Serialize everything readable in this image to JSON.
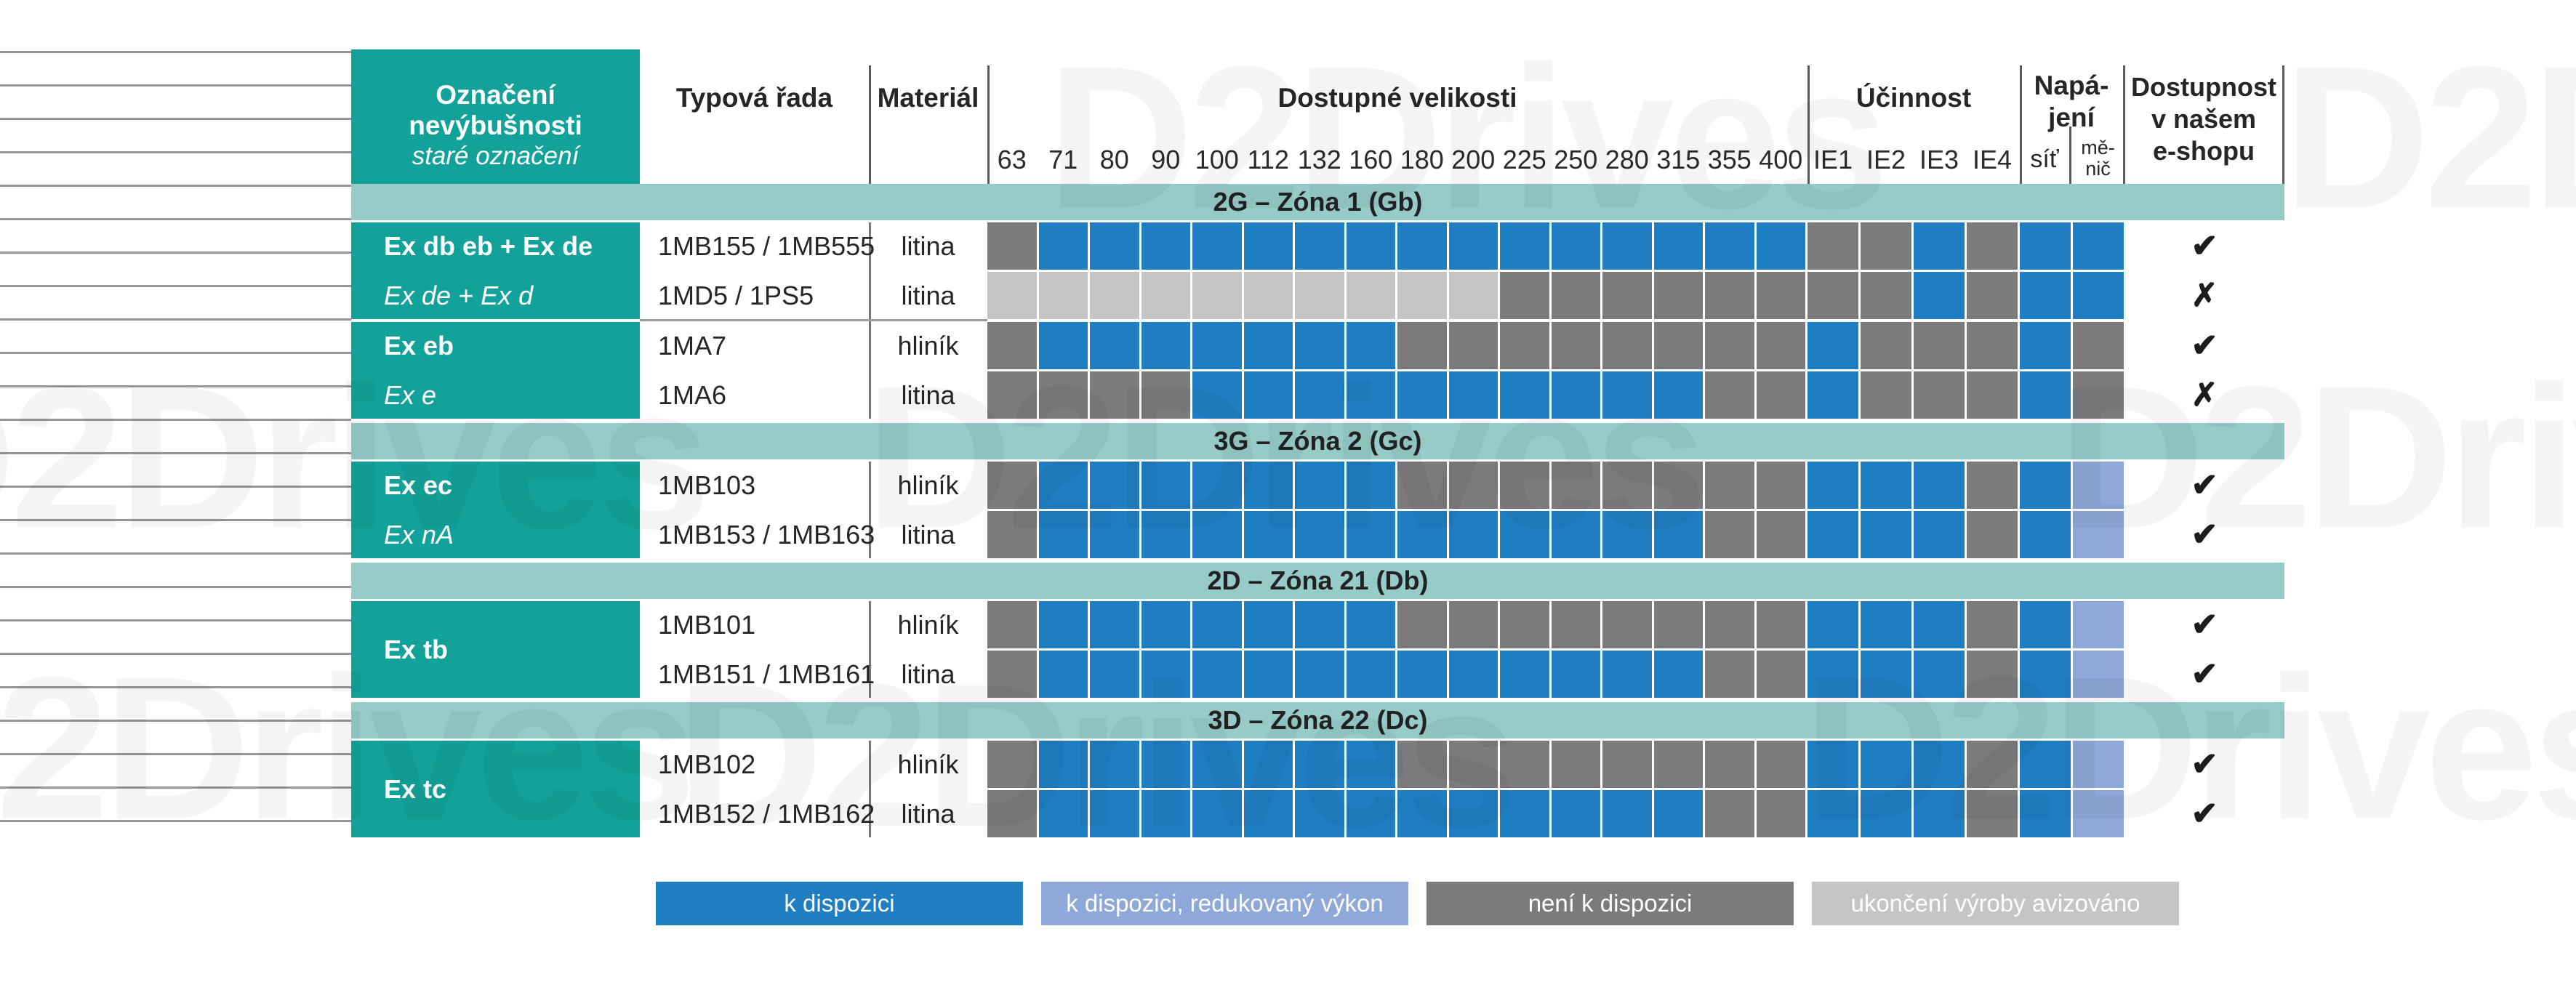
{
  "colors": {
    "available": "#1f7dc1",
    "reduced": "#8ea9d9",
    "unavailable": "#7b7b7d",
    "discontinued": "#c4c5c7",
    "teal": "#13a29a",
    "band": "#96cbc8"
  },
  "watermark": {
    "text": "D2Drives"
  },
  "marks": {
    "yes": "✔",
    "no": "✗"
  },
  "header": {
    "designation_title": "Označení nevýbušnosti",
    "designation_subtitle": "staré označení",
    "type_series": "Typová řada",
    "material": "Materiál",
    "sizes_title": "Dostupné velikosti",
    "sizes": [
      "63",
      "71",
      "80",
      "90",
      "100",
      "112",
      "132",
      "160",
      "180",
      "200",
      "225",
      "250",
      "280",
      "315",
      "355",
      "400"
    ],
    "efficiency_title": "Účinnost",
    "efficiency_classes": [
      "IE1",
      "IE2",
      "IE3",
      "IE4"
    ],
    "power_title_lines": [
      "Napá-",
      "jení"
    ],
    "power_grid": "síť",
    "power_inverter_lines": [
      "mě-",
      "nič"
    ],
    "availability_lines": [
      "Dostupnost",
      "v našem",
      "e-shopu"
    ]
  },
  "sections": [
    {
      "band": "2G – Zóna 1 (Gb)",
      "groups": [
        {
          "label_bold": "Ex db eb + Ex de",
          "label_italic": "Ex de + Ex d",
          "rows": [
            {
              "type": "1MB155 / 1MB555",
              "material": "litina",
              "sizes": [
                "N",
                "A",
                "A",
                "A",
                "A",
                "A",
                "A",
                "A",
                "A",
                "A",
                "A",
                "A",
                "A",
                "A",
                "A",
                "A"
              ],
              "efficiency": [
                "N",
                "N",
                "A",
                "N"
              ],
              "power": [
                "A",
                "A"
              ],
              "eshop": "yes"
            },
            {
              "type": "1MD5 / 1PS5",
              "material": "litina",
              "sizes": [
                "E",
                "E",
                "E",
                "E",
                "E",
                "E",
                "E",
                "E",
                "E",
                "E",
                "N",
                "N",
                "N",
                "N",
                "N",
                "N"
              ],
              "efficiency": [
                "N",
                "N",
                "A",
                "N"
              ],
              "power": [
                "A",
                "A"
              ],
              "eshop": "no"
            }
          ]
        },
        {
          "label_bold": "Ex eb",
          "label_italic": "Ex e",
          "rows": [
            {
              "type": "1MA7",
              "material": "hliník",
              "sizes": [
                "N",
                "A",
                "A",
                "A",
                "A",
                "A",
                "A",
                "A",
                "N",
                "N",
                "N",
                "N",
                "N",
                "N",
                "N",
                "N"
              ],
              "efficiency": [
                "A",
                "N",
                "N",
                "N"
              ],
              "power": [
                "A",
                "N"
              ],
              "eshop": "yes"
            },
            {
              "type": "1MA6",
              "material": "litina",
              "sizes": [
                "N",
                "N",
                "N",
                "N",
                "A",
                "A",
                "A",
                "A",
                "A",
                "A",
                "A",
                "A",
                "A",
                "A",
                "N",
                "N"
              ],
              "efficiency": [
                "A",
                "N",
                "N",
                "N"
              ],
              "power": [
                "A",
                "N"
              ],
              "eshop": "no"
            }
          ]
        }
      ]
    },
    {
      "band": "3G – Zóna 2 (Gc)",
      "groups": [
        {
          "label_bold": "Ex ec",
          "label_italic": "Ex nA",
          "rows": [
            {
              "type": "1MB103",
              "material": "hliník",
              "sizes": [
                "N",
                "A",
                "A",
                "A",
                "A",
                "A",
                "A",
                "A",
                "N",
                "N",
                "N",
                "N",
                "N",
                "N",
                "N",
                "N"
              ],
              "efficiency": [
                "A",
                "A",
                "A",
                "N"
              ],
              "power": [
                "A",
                "R"
              ],
              "eshop": "yes"
            },
            {
              "type": "1MB153 / 1MB163",
              "material": "litina",
              "sizes": [
                "N",
                "A",
                "A",
                "A",
                "A",
                "A",
                "A",
                "A",
                "A",
                "A",
                "A",
                "A",
                "A",
                "A",
                "N",
                "N"
              ],
              "efficiency": [
                "A",
                "A",
                "A",
                "N"
              ],
              "power": [
                "A",
                "R"
              ],
              "eshop": "yes"
            }
          ]
        }
      ]
    },
    {
      "band": "2D – Zóna 21 (Db)",
      "groups": [
        {
          "label_bold": "Ex tb",
          "label_italic": null,
          "rows": [
            {
              "type": "1MB101",
              "material": "hliník",
              "sizes": [
                "N",
                "A",
                "A",
                "A",
                "A",
                "A",
                "A",
                "A",
                "N",
                "N",
                "N",
                "N",
                "N",
                "N",
                "N",
                "N"
              ],
              "efficiency": [
                "A",
                "A",
                "A",
                "N"
              ],
              "power": [
                "A",
                "R"
              ],
              "eshop": "yes"
            },
            {
              "type": "1MB151 / 1MB161",
              "material": "litina",
              "sizes": [
                "N",
                "A",
                "A",
                "A",
                "A",
                "A",
                "A",
                "A",
                "A",
                "A",
                "A",
                "A",
                "A",
                "A",
                "N",
                "N"
              ],
              "efficiency": [
                "A",
                "A",
                "A",
                "N"
              ],
              "power": [
                "A",
                "R"
              ],
              "eshop": "yes"
            }
          ]
        }
      ]
    },
    {
      "band": "3D – Zóna 22 (Dc)",
      "groups": [
        {
          "label_bold": "Ex tc",
          "label_italic": null,
          "rows": [
            {
              "type": "1MB102",
              "material": "hliník",
              "sizes": [
                "N",
                "A",
                "A",
                "A",
                "A",
                "A",
                "A",
                "A",
                "N",
                "N",
                "N",
                "N",
                "N",
                "N",
                "N",
                "N"
              ],
              "efficiency": [
                "A",
                "A",
                "A",
                "N"
              ],
              "power": [
                "A",
                "R"
              ],
              "eshop": "yes"
            },
            {
              "type": "1MB152 / 1MB162",
              "material": "litina",
              "sizes": [
                "N",
                "A",
                "A",
                "A",
                "A",
                "A",
                "A",
                "A",
                "A",
                "A",
                "A",
                "A",
                "A",
                "A",
                "N",
                "N"
              ],
              "efficiency": [
                "A",
                "A",
                "A",
                "N"
              ],
              "power": [
                "A",
                "R"
              ],
              "eshop": "yes"
            }
          ]
        }
      ]
    }
  ],
  "legend": [
    {
      "label": "k dispozici",
      "key": "available"
    },
    {
      "label": "k dispozici, redukovaný výkon",
      "key": "reduced"
    },
    {
      "label": "není k dispozici",
      "key": "unavailable"
    },
    {
      "label": "ukončení výroby avizováno",
      "key": "discontinued"
    }
  ],
  "chart_data": {
    "type": "table",
    "title": "Dostupné velikosti",
    "status_legend": {
      "A": "k dispozici",
      "R": "k dispozici, redukovaný výkon",
      "N": "není k dispozici",
      "E": "ukončení výroby avizováno"
    },
    "columns": [
      "63",
      "71",
      "80",
      "90",
      "100",
      "112",
      "132",
      "160",
      "180",
      "200",
      "225",
      "250",
      "280",
      "315",
      "355",
      "400",
      "IE1",
      "IE2",
      "IE3",
      "IE4",
      "síť",
      "měnič"
    ],
    "rows": [
      {
        "zone": "2G – Zóna 1 (Gb)",
        "designation": "Ex db eb + Ex de",
        "old_designation": "Ex de + Ex d",
        "type_series": "1MB155 / 1MB555",
        "material": "litina",
        "values": [
          "N",
          "A",
          "A",
          "A",
          "A",
          "A",
          "A",
          "A",
          "A",
          "A",
          "A",
          "A",
          "A",
          "A",
          "A",
          "A",
          "N",
          "N",
          "A",
          "N",
          "A",
          "A"
        ],
        "eshop": true
      },
      {
        "zone": "2G – Zóna 1 (Gb)",
        "designation": "Ex db eb + Ex de",
        "old_designation": "Ex de + Ex d",
        "type_series": "1MD5 / 1PS5",
        "material": "litina",
        "values": [
          "E",
          "E",
          "E",
          "E",
          "E",
          "E",
          "E",
          "E",
          "E",
          "E",
          "N",
          "N",
          "N",
          "N",
          "N",
          "N",
          "N",
          "N",
          "A",
          "N",
          "A",
          "A"
        ],
        "eshop": false
      },
      {
        "zone": "2G – Zóna 1 (Gb)",
        "designation": "Ex eb",
        "old_designation": "Ex e",
        "type_series": "1MA7",
        "material": "hliník",
        "values": [
          "N",
          "A",
          "A",
          "A",
          "A",
          "A",
          "A",
          "A",
          "N",
          "N",
          "N",
          "N",
          "N",
          "N",
          "N",
          "N",
          "A",
          "N",
          "N",
          "N",
          "A",
          "N"
        ],
        "eshop": true
      },
      {
        "zone": "2G – Zóna 1 (Gb)",
        "designation": "Ex eb",
        "old_designation": "Ex e",
        "type_series": "1MA6",
        "material": "litina",
        "values": [
          "N",
          "N",
          "N",
          "N",
          "A",
          "A",
          "A",
          "A",
          "A",
          "A",
          "A",
          "A",
          "A",
          "A",
          "N",
          "N",
          "A",
          "N",
          "N",
          "N",
          "A",
          "N"
        ],
        "eshop": false
      },
      {
        "zone": "3G – Zóna 2 (Gc)",
        "designation": "Ex ec",
        "old_designation": "Ex nA",
        "type_series": "1MB103",
        "material": "hliník",
        "values": [
          "N",
          "A",
          "A",
          "A",
          "A",
          "A",
          "A",
          "A",
          "N",
          "N",
          "N",
          "N",
          "N",
          "N",
          "N",
          "N",
          "A",
          "A",
          "A",
          "N",
          "A",
          "R"
        ],
        "eshop": true
      },
      {
        "zone": "3G – Zóna 2 (Gc)",
        "designation": "Ex ec",
        "old_designation": "Ex nA",
        "type_series": "1MB153 / 1MB163",
        "material": "litina",
        "values": [
          "N",
          "A",
          "A",
          "A",
          "A",
          "A",
          "A",
          "A",
          "A",
          "A",
          "A",
          "A",
          "A",
          "A",
          "N",
          "N",
          "A",
          "A",
          "A",
          "N",
          "A",
          "R"
        ],
        "eshop": true
      },
      {
        "zone": "2D – Zóna 21 (Db)",
        "designation": "Ex tb",
        "old_designation": null,
        "type_series": "1MB101",
        "material": "hliník",
        "values": [
          "N",
          "A",
          "A",
          "A",
          "A",
          "A",
          "A",
          "A",
          "N",
          "N",
          "N",
          "N",
          "N",
          "N",
          "N",
          "N",
          "A",
          "A",
          "A",
          "N",
          "A",
          "R"
        ],
        "eshop": true
      },
      {
        "zone": "2D – Zóna 21 (Db)",
        "designation": "Ex tb",
        "old_designation": null,
        "type_series": "1MB151 / 1MB161",
        "material": "litina",
        "values": [
          "N",
          "A",
          "A",
          "A",
          "A",
          "A",
          "A",
          "A",
          "A",
          "A",
          "A",
          "A",
          "A",
          "A",
          "N",
          "N",
          "A",
          "A",
          "A",
          "N",
          "A",
          "R"
        ],
        "eshop": true
      },
      {
        "zone": "3D – Zóna 22 (Dc)",
        "designation": "Ex tc",
        "old_designation": null,
        "type_series": "1MB102",
        "material": "hliník",
        "values": [
          "N",
          "A",
          "A",
          "A",
          "A",
          "A",
          "A",
          "A",
          "N",
          "N",
          "N",
          "N",
          "N",
          "N",
          "N",
          "N",
          "A",
          "A",
          "A",
          "N",
          "A",
          "R"
        ],
        "eshop": true
      },
      {
        "zone": "3D – Zóna 22 (Dc)",
        "designation": "Ex tc",
        "old_designation": null,
        "type_series": "1MB152 / 1MB162",
        "material": "litina",
        "values": [
          "N",
          "A",
          "A",
          "A",
          "A",
          "A",
          "A",
          "A",
          "A",
          "A",
          "A",
          "A",
          "A",
          "A",
          "N",
          "N",
          "A",
          "A",
          "A",
          "N",
          "A",
          "R"
        ],
        "eshop": true
      }
    ]
  }
}
